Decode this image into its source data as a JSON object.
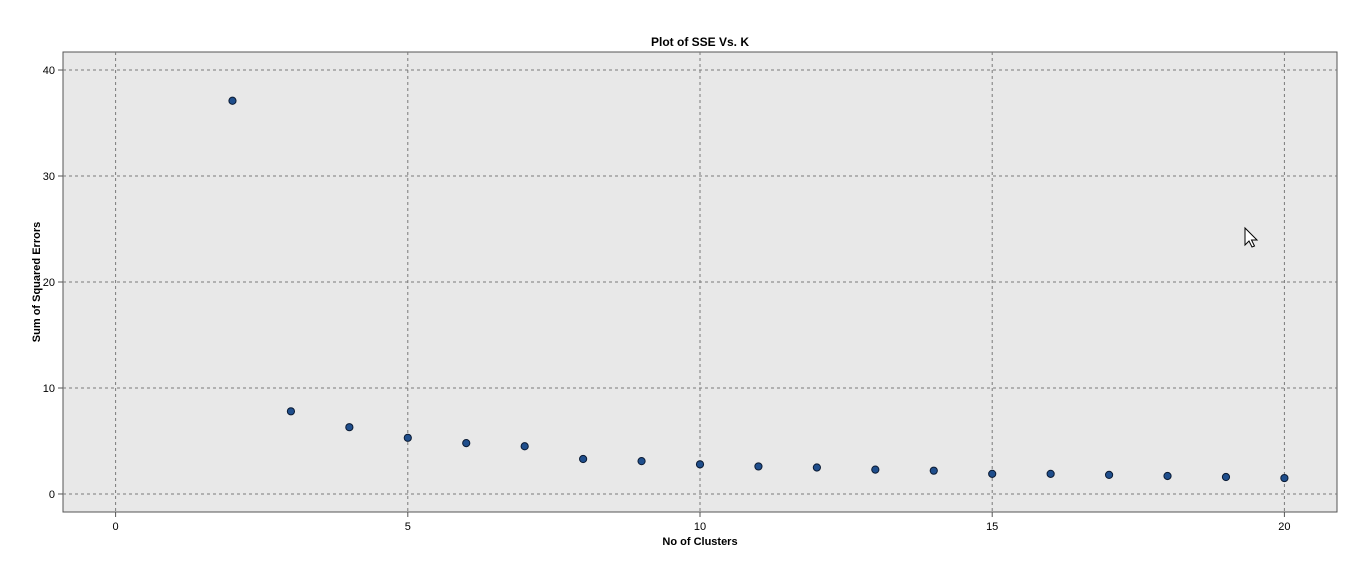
{
  "chart_data": {
    "type": "scatter",
    "title": "Plot of SSE Vs. K",
    "xlabel": "No of Clusters",
    "ylabel": "Sum of Squared Errors",
    "xlim": [
      -0.9,
      20.9
    ],
    "ylim": [
      -1.7,
      41.7
    ],
    "xticks": [
      0,
      5,
      10,
      15,
      20
    ],
    "xtick_labels": [
      "0",
      "5",
      "10",
      "15",
      "20"
    ],
    "yticks": [
      0,
      10,
      20,
      30,
      40
    ],
    "ytick_labels": [
      "0",
      "10",
      "20",
      "30",
      "40"
    ],
    "grid": true,
    "colors": {
      "plot_background": "#e8e8e8",
      "point_fill": "#1f4e8c",
      "point_stroke": "#0a1a33"
    },
    "x": [
      2,
      3,
      4,
      5,
      6,
      7,
      8,
      9,
      10,
      11,
      12,
      13,
      14,
      15,
      16,
      17,
      18,
      19,
      20
    ],
    "y": [
      37.1,
      7.8,
      6.3,
      5.3,
      4.8,
      4.5,
      3.3,
      3.1,
      2.8,
      2.6,
      2.5,
      2.3,
      2.2,
      1.9,
      1.9,
      1.8,
      1.7,
      1.6,
      1.5
    ]
  },
  "icons": {
    "cursor": "mouse-pointer-icon"
  }
}
